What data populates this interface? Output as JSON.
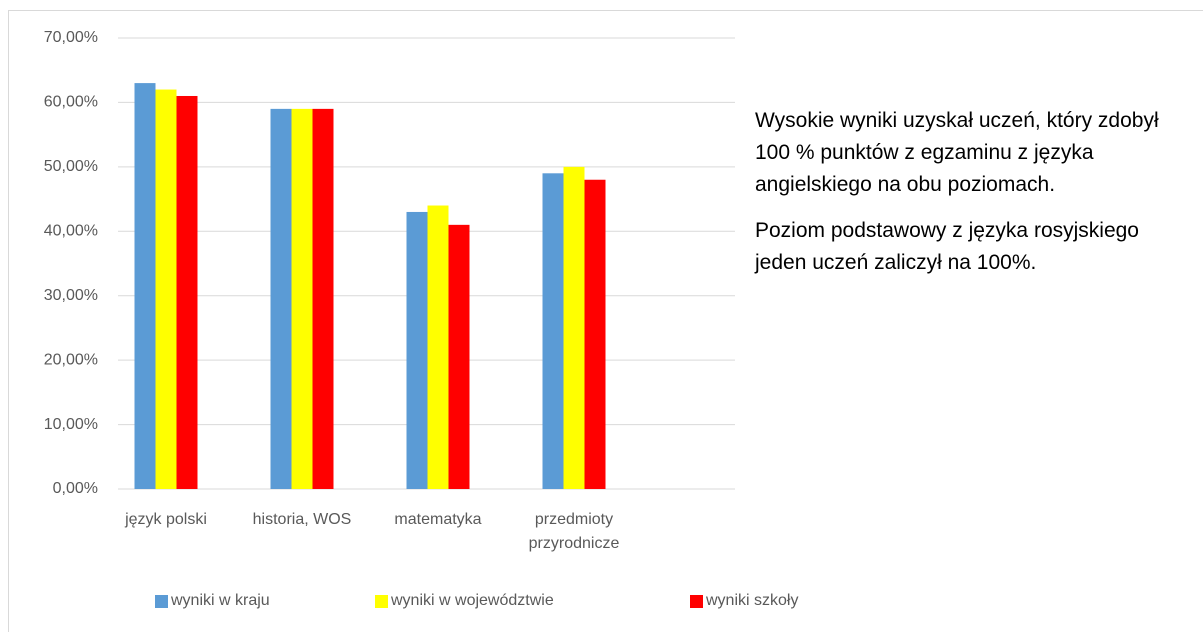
{
  "chart_data": {
    "type": "bar",
    "categories": [
      "język polski",
      "historia, WOS",
      "matematyka",
      "przedmioty przyrodnicze"
    ],
    "series": [
      {
        "name": "wyniki w kraju",
        "color": "#5b9bd5",
        "values": [
          63,
          59,
          43,
          49
        ]
      },
      {
        "name": "wyniki w województwie",
        "color": "#ffff00",
        "values": [
          62,
          59,
          44,
          50
        ]
      },
      {
        "name": "wyniki szkoły",
        "color": "#ff0000",
        "values": [
          61,
          59,
          41,
          48
        ]
      }
    ],
    "ylim": [
      0,
      70
    ],
    "yticks": [
      {
        "value": 0,
        "label": "0,00%"
      },
      {
        "value": 10,
        "label": "10,00%"
      },
      {
        "value": 20,
        "label": "20,00%"
      },
      {
        "value": 30,
        "label": "30,00%"
      },
      {
        "value": 40,
        "label": "40,00%"
      },
      {
        "value": 50,
        "label": "50,00%"
      },
      {
        "value": 60,
        "label": "60,00%"
      },
      {
        "value": 70,
        "label": "70,00%"
      }
    ],
    "grid": true,
    "legend": "bottom",
    "annotations": [
      "Wysokie wyniki uzyskał uczeń, który zdobył 100 % punktów z egzaminu z języka angielskiego na obu poziomach.",
      "Poziom podstawowy z języka rosyjskiego jeden uczeń zaliczył na 100%."
    ]
  }
}
